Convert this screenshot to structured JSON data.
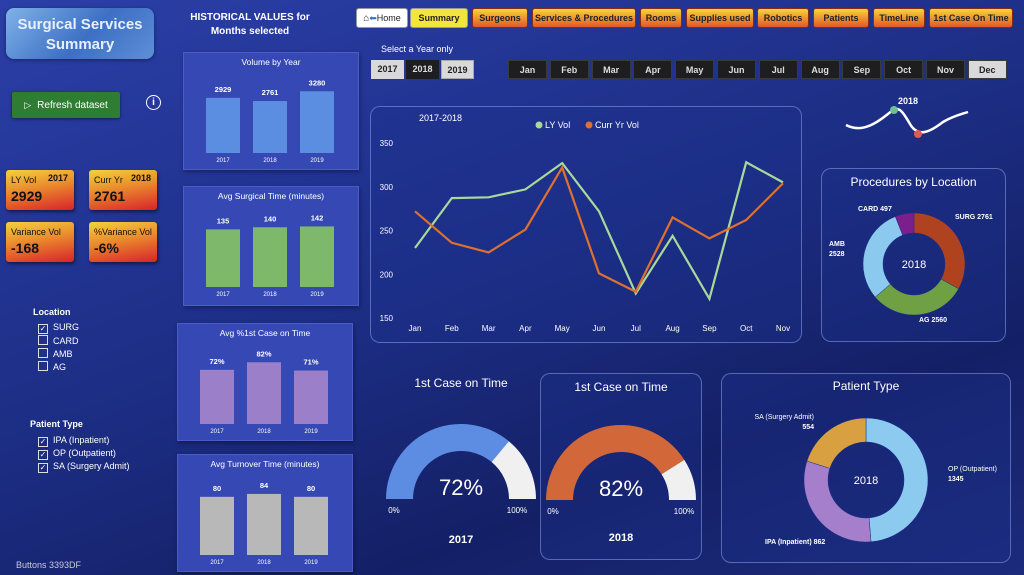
{
  "header": {
    "app_title_line1": "Surgical Services",
    "app_title_line2": "Summary",
    "historical_line1": "HISTORICAL VALUES for",
    "historical_line2": "Months selected"
  },
  "nav": [
    {
      "label": "Home"
    },
    {
      "label": "Summary"
    },
    {
      "label": "Surgeons"
    },
    {
      "label": "Services & Procedures"
    },
    {
      "label": "Rooms"
    },
    {
      "label": "Supplies used"
    },
    {
      "label": "Robotics"
    },
    {
      "label": "Patients"
    },
    {
      "label": "TimeLine"
    },
    {
      "label": "1st Case On Time"
    }
  ],
  "year_filter": {
    "prompt": "Select a Year only",
    "years": [
      "2017",
      "2018",
      "2019"
    ],
    "months": [
      "Jan",
      "Feb",
      "Mar",
      "Apr",
      "May",
      "Jun",
      "Jul",
      "Aug",
      "Sep",
      "Oct",
      "Nov",
      "Dec"
    ],
    "selected_month": "Dec"
  },
  "refresh_label": "Refresh dataset",
  "info_label": "i",
  "kpis": {
    "ly_vol": {
      "label": "LY Vol",
      "year": "2017",
      "value": "2929"
    },
    "curr_yr": {
      "label": "Curr Yr",
      "year": "2018",
      "value": "2761"
    },
    "variance_vol": {
      "label": "Variance Vol",
      "value": "-168"
    },
    "pct_variance_vol": {
      "label": "%Variance Vol",
      "value": "-6%"
    }
  },
  "location_filter": {
    "title": "Location",
    "items": [
      {
        "label": "SURG",
        "checked": true
      },
      {
        "label": "CARD",
        "checked": false
      },
      {
        "label": "AMB",
        "checked": false
      },
      {
        "label": "AG",
        "checked": false
      }
    ]
  },
  "patient_type_filter": {
    "title": "Patient Type",
    "items": [
      {
        "label": "IPA (Inpatient)",
        "checked": true
      },
      {
        "label": "OP (Outpatient)",
        "checked": true
      },
      {
        "label": "SA (Surgery Admit)",
        "checked": true
      }
    ]
  },
  "slicer_year": "2018",
  "footer": "Buttons 3393DF",
  "check_mark": "✓",
  "colors": {
    "blue": "#5b8ee0",
    "green": "#7db86b",
    "purple": "#9b7fc8",
    "gray": "#b8b8b8",
    "ly": "#a9d99a",
    "curr": "#e0702e"
  },
  "chart_data": [
    {
      "type": "bar",
      "title": "Volume by Year",
      "categories": [
        "2017",
        "2018",
        "2019"
      ],
      "values": [
        2929,
        2761,
        3280
      ],
      "labels": [
        "2929",
        "2761",
        "3280"
      ],
      "ylim": [
        0,
        3400
      ]
    },
    {
      "type": "bar",
      "title": "Avg Surgical Time (minutes)",
      "categories": [
        "2017",
        "2018",
        "2019"
      ],
      "values": [
        135,
        140,
        142
      ],
      "labels": [
        "135",
        "140",
        "142"
      ],
      "ylim": [
        0,
        150
      ]
    },
    {
      "type": "bar",
      "title": "Avg %1st Case on Time",
      "categories": [
        "2017",
        "2018",
        "2019"
      ],
      "values": [
        72,
        82,
        71
      ],
      "labels": [
        "72%",
        "82%",
        "71%"
      ],
      "ylim": [
        0,
        85
      ]
    },
    {
      "type": "bar",
      "title": "Avg Turnover Time (minutes)",
      "categories": [
        "2017",
        "2018",
        "2019"
      ],
      "values": [
        80,
        84,
        80
      ],
      "labels": [
        "80",
        "84",
        "80"
      ],
      "ylim": [
        0,
        88
      ]
    },
    {
      "type": "line",
      "title": "2017-2018",
      "categories": [
        "Jan",
        "Feb",
        "Mar",
        "Apr",
        "May",
        "Jun",
        "Jul",
        "Aug",
        "Sep",
        "Oct",
        "Nov"
      ],
      "series": [
        {
          "name": "LY Vol",
          "values": [
            230,
            287,
            288,
            297,
            327,
            272,
            178,
            244,
            172,
            328,
            305
          ]
        },
        {
          "name": "Curr Yr Vol",
          "values": [
            272,
            236,
            225,
            251,
            322,
            201,
            180,
            265,
            241,
            262,
            304
          ]
        }
      ],
      "yticks": [
        "350",
        "300",
        "250",
        "200",
        "150"
      ],
      "ylim": [
        150,
        350
      ]
    },
    {
      "type": "pie",
      "title": "Procedures by Location",
      "center": "2018",
      "slices": [
        {
          "label": "SURG 2761",
          "value": 2761
        },
        {
          "label": "AG 2560",
          "value": 2560
        },
        {
          "label": "AMB 2528",
          "value": 2528
        },
        {
          "label": "CARD 497",
          "value": 497
        }
      ]
    },
    {
      "type": "gauge",
      "title": "1st Case on Time",
      "value": 72,
      "value_label": "72%",
      "min_label": "0%",
      "max_label": "100%",
      "year": "2017"
    },
    {
      "type": "gauge",
      "title": "1st Case on Time",
      "value": 82,
      "value_label": "82%",
      "min_label": "0%",
      "max_label": "100%",
      "year": "2018"
    },
    {
      "type": "pie",
      "title": "Patient Type",
      "center": "2018",
      "slices": [
        {
          "label": "OP (Outpatient)",
          "value": 1345,
          "value_label": "1345"
        },
        {
          "label": "IPA (Inpatient)",
          "value": 862,
          "value_label": "862"
        },
        {
          "label": "SA (Surgery Admit)",
          "value": 554,
          "value_label": "554"
        }
      ]
    }
  ]
}
